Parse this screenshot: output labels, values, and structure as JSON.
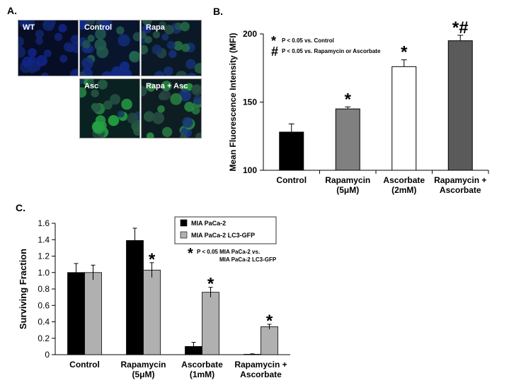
{
  "panels": {
    "a": {
      "label": "A.",
      "images": [
        {
          "label": "WT",
          "tint": "#0a1a4a"
        },
        {
          "label": "Control",
          "tint": "#123a6a"
        },
        {
          "label": "Rapa",
          "tint": "#1a4a4a"
        },
        {
          "label": "Asc",
          "tint": "#1d6a3a"
        },
        {
          "label": "Rapa + Asc",
          "tint": "#2a5a3a"
        }
      ]
    },
    "b": {
      "label": "B."
    },
    "c": {
      "label": "C."
    }
  },
  "chart_data": [
    {
      "id": "B",
      "type": "bar",
      "ylabel": "Mean Fluorescence Intensity (MFI)",
      "categories": [
        [
          "Control"
        ],
        [
          "Rapamycin",
          "(5μM)"
        ],
        [
          "Ascorbate",
          "(2mM)"
        ],
        [
          "Rapamycin +",
          "Ascorbate"
        ]
      ],
      "values": [
        128,
        145,
        176,
        195
      ],
      "errors": [
        6,
        1.5,
        5,
        4
      ],
      "colors": [
        "#000000",
        "#808080",
        "#ffffff",
        "#5a5a5a"
      ],
      "markers": [
        "",
        "*",
        "*",
        "*#"
      ],
      "ylim": [
        100,
        200
      ],
      "yticks": [
        100,
        150,
        200
      ],
      "legend": [
        {
          "symbol": "*",
          "text": "P < 0.05 vs. Control"
        },
        {
          "symbol": "#",
          "text": "P < 0.05 vs. Rapamycin or Ascorbate"
        }
      ]
    },
    {
      "id": "C",
      "type": "bar",
      "ylabel": "Surviving Fraction",
      "categories": [
        [
          "Control"
        ],
        [
          "Rapamycin",
          "(5μM)"
        ],
        [
          "Ascorbate",
          "(1mM)"
        ],
        [
          "Rapamycin +",
          "Ascorbate"
        ]
      ],
      "series": [
        {
          "name": "MIA PaCa-2",
          "color": "#000000",
          "values": [
            1.0,
            1.39,
            0.1,
            0.005
          ],
          "errors": [
            0.11,
            0.15,
            0.05,
            0.005
          ]
        },
        {
          "name": "MIA PaCa-2  LC3-GFP",
          "color": "#b0b0b0",
          "values": [
            1.0,
            1.03,
            0.76,
            0.34
          ],
          "errors": [
            0.09,
            0.09,
            0.06,
            0.03
          ],
          "markers": [
            "",
            "*",
            "*",
            "*"
          ]
        }
      ],
      "ylim": [
        0,
        1.6
      ],
      "yticks": [
        0,
        0.2,
        0.4,
        0.6,
        0.8,
        1.0,
        1.2,
        1.4,
        1.6
      ],
      "ytick_labels": [
        "0",
        "0.2",
        "0.4",
        "0.6",
        "0.8",
        "1.0",
        "1.2",
        "1.4",
        "1.6"
      ],
      "annotation": [
        "P < 0.05 MIA PaCa-2 vs.",
        "MIA PaCa-2 LC3-GFP"
      ]
    }
  ]
}
